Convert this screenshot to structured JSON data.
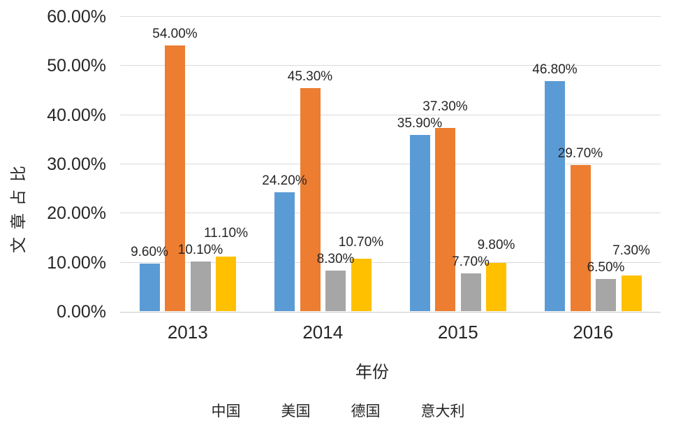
{
  "chart_data": {
    "type": "bar",
    "title": "",
    "xlabel": "年份",
    "ylabel": "文章占比",
    "categories": [
      "2013",
      "2014",
      "2015",
      "2016"
    ],
    "series": [
      {
        "name": "中国",
        "color": "#5B9BD5",
        "texture": "solid",
        "values": [
          9.6,
          24.2,
          35.9,
          46.8
        ],
        "labels": [
          "9.60%",
          "24.20%",
          "35.90%",
          "46.80%"
        ]
      },
      {
        "name": "美国",
        "color": "#ED7D31",
        "texture": "solid",
        "values": [
          54.0,
          45.3,
          37.3,
          29.7
        ],
        "labels": [
          "54.00%",
          "45.30%",
          "37.30%",
          "29.70%"
        ]
      },
      {
        "name": "德国",
        "color": "#A6A6A6",
        "texture": "dotted",
        "values": [
          10.1,
          8.3,
          7.7,
          6.5
        ],
        "labels": [
          "10.10%",
          "8.30%",
          "7.70%",
          "6.50%"
        ]
      },
      {
        "name": "意大利",
        "color": "#FFC000",
        "texture": "solid",
        "values": [
          11.1,
          10.7,
          9.8,
          7.3
        ],
        "labels": [
          "11.10%",
          "10.70%",
          "9.80%",
          "7.30%"
        ]
      }
    ],
    "ylim": [
      0,
      60
    ],
    "yticks": [
      "0.00%",
      "10.00%",
      "20.00%",
      "30.00%",
      "40.00%",
      "50.00%",
      "60.00%"
    ],
    "grid": true,
    "legend": [
      "中国",
      "美国",
      "德国",
      "意大利"
    ],
    "legend_position": "bottom",
    "colors": {
      "grid": "#DADADA",
      "axis_line": "#C8C8C8",
      "text": "#262626"
    }
  }
}
